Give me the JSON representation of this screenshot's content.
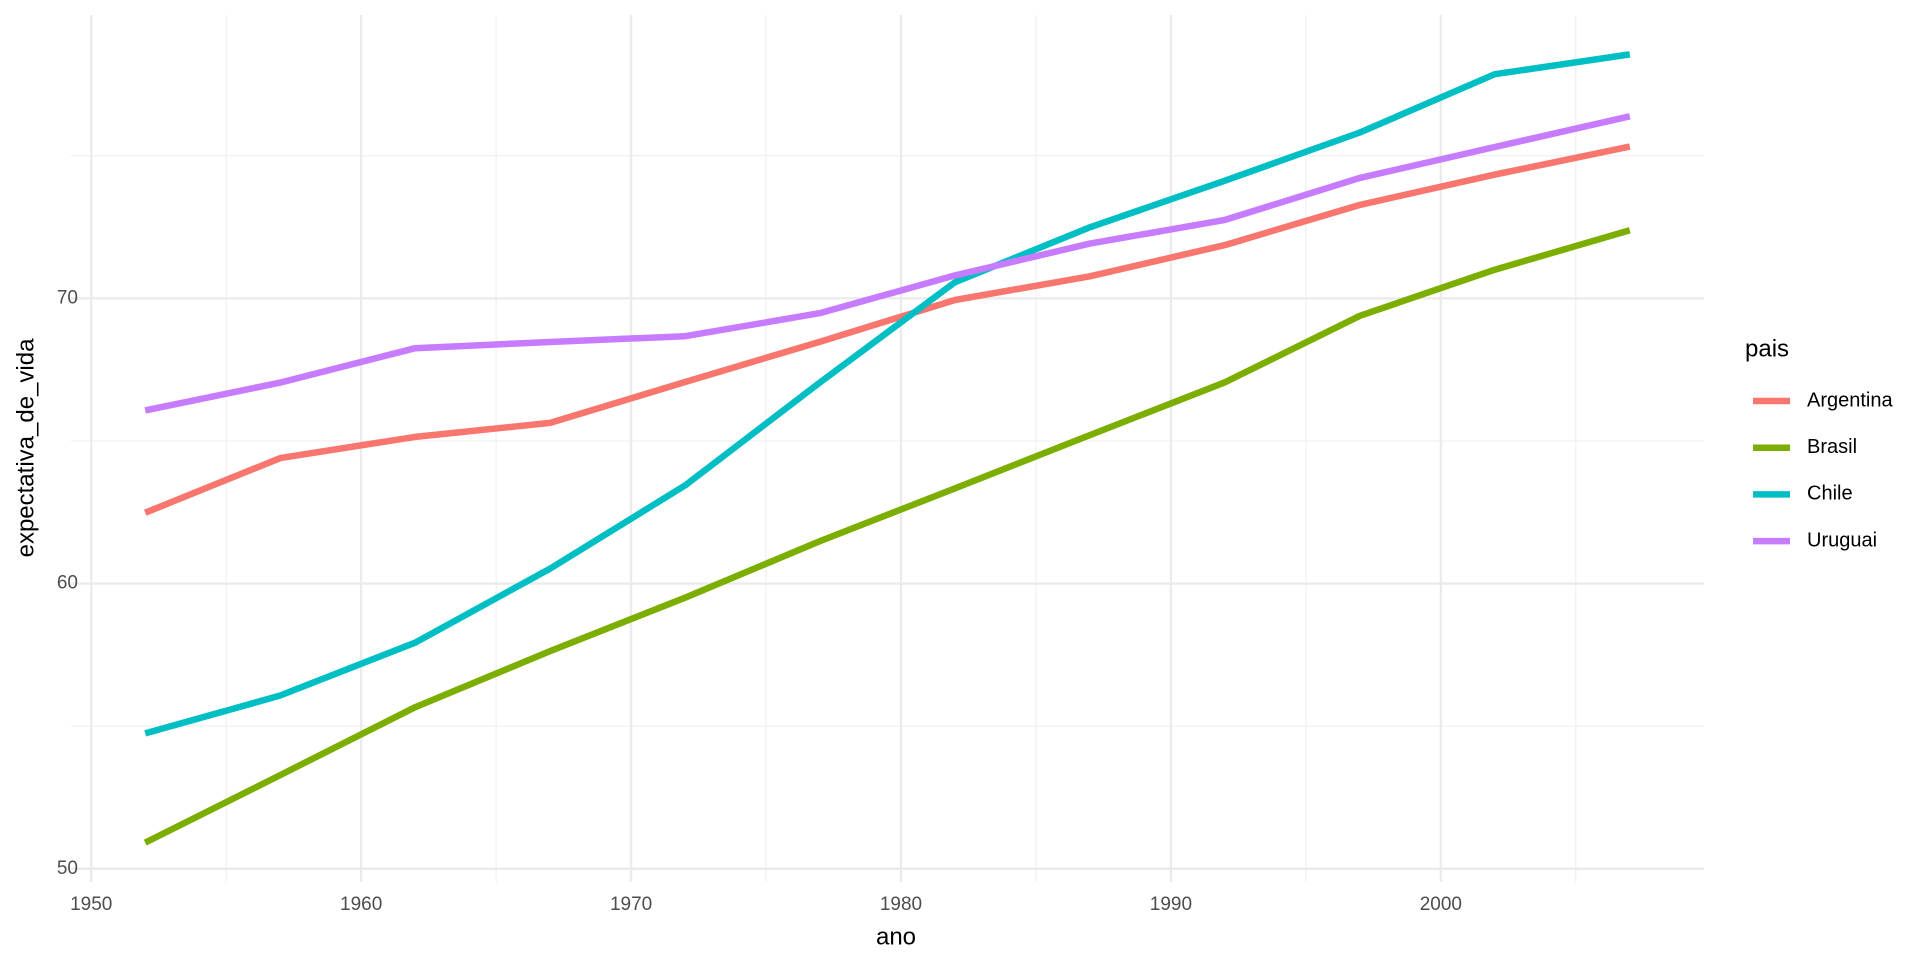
{
  "chart_data": {
    "type": "line",
    "x_label": "ano",
    "y_label": "expectativa_de_vida",
    "legend_title": "pais",
    "x": [
      1952,
      1957,
      1962,
      1967,
      1972,
      1977,
      1982,
      1987,
      1992,
      1997,
      2002,
      2007
    ],
    "series": [
      {
        "name": "Argentina",
        "color": "#F8766D",
        "values": [
          62.485,
          64.399,
          65.142,
          65.634,
          67.065,
          68.481,
          69.942,
          70.774,
          71.868,
          73.275,
          74.34,
          75.32
        ]
      },
      {
        "name": "Brasil",
        "color": "#7CAE00",
        "values": [
          50.917,
          53.285,
          55.665,
          57.632,
          59.504,
          61.489,
          63.336,
          65.205,
          67.057,
          69.388,
          71.006,
          72.39
        ]
      },
      {
        "name": "Chile",
        "color": "#00BFC4",
        "values": [
          54.745,
          56.074,
          57.924,
          60.523,
          63.441,
          67.052,
          70.565,
          72.492,
          74.126,
          75.816,
          77.86,
          78.553
        ]
      },
      {
        "name": "Uruguai",
        "color": "#C77CFF",
        "values": [
          66.071,
          67.044,
          68.253,
          68.468,
          68.673,
          69.481,
          70.805,
          71.918,
          72.752,
          74.223,
          75.307,
          76.384
        ]
      }
    ],
    "xlim": [
      1949.25,
      2009.75
    ],
    "ylim": [
      49.535,
      79.935
    ],
    "xticks": [
      1950,
      1960,
      1970,
      1980,
      1990,
      2000
    ],
    "yticks": [
      50,
      60,
      70
    ],
    "minor_xticks": [
      1955,
      1965,
      1975,
      1985,
      1995,
      2005
    ],
    "minor_yticks": [
      55,
      65,
      75
    ],
    "grid": true,
    "legend": "right"
  }
}
